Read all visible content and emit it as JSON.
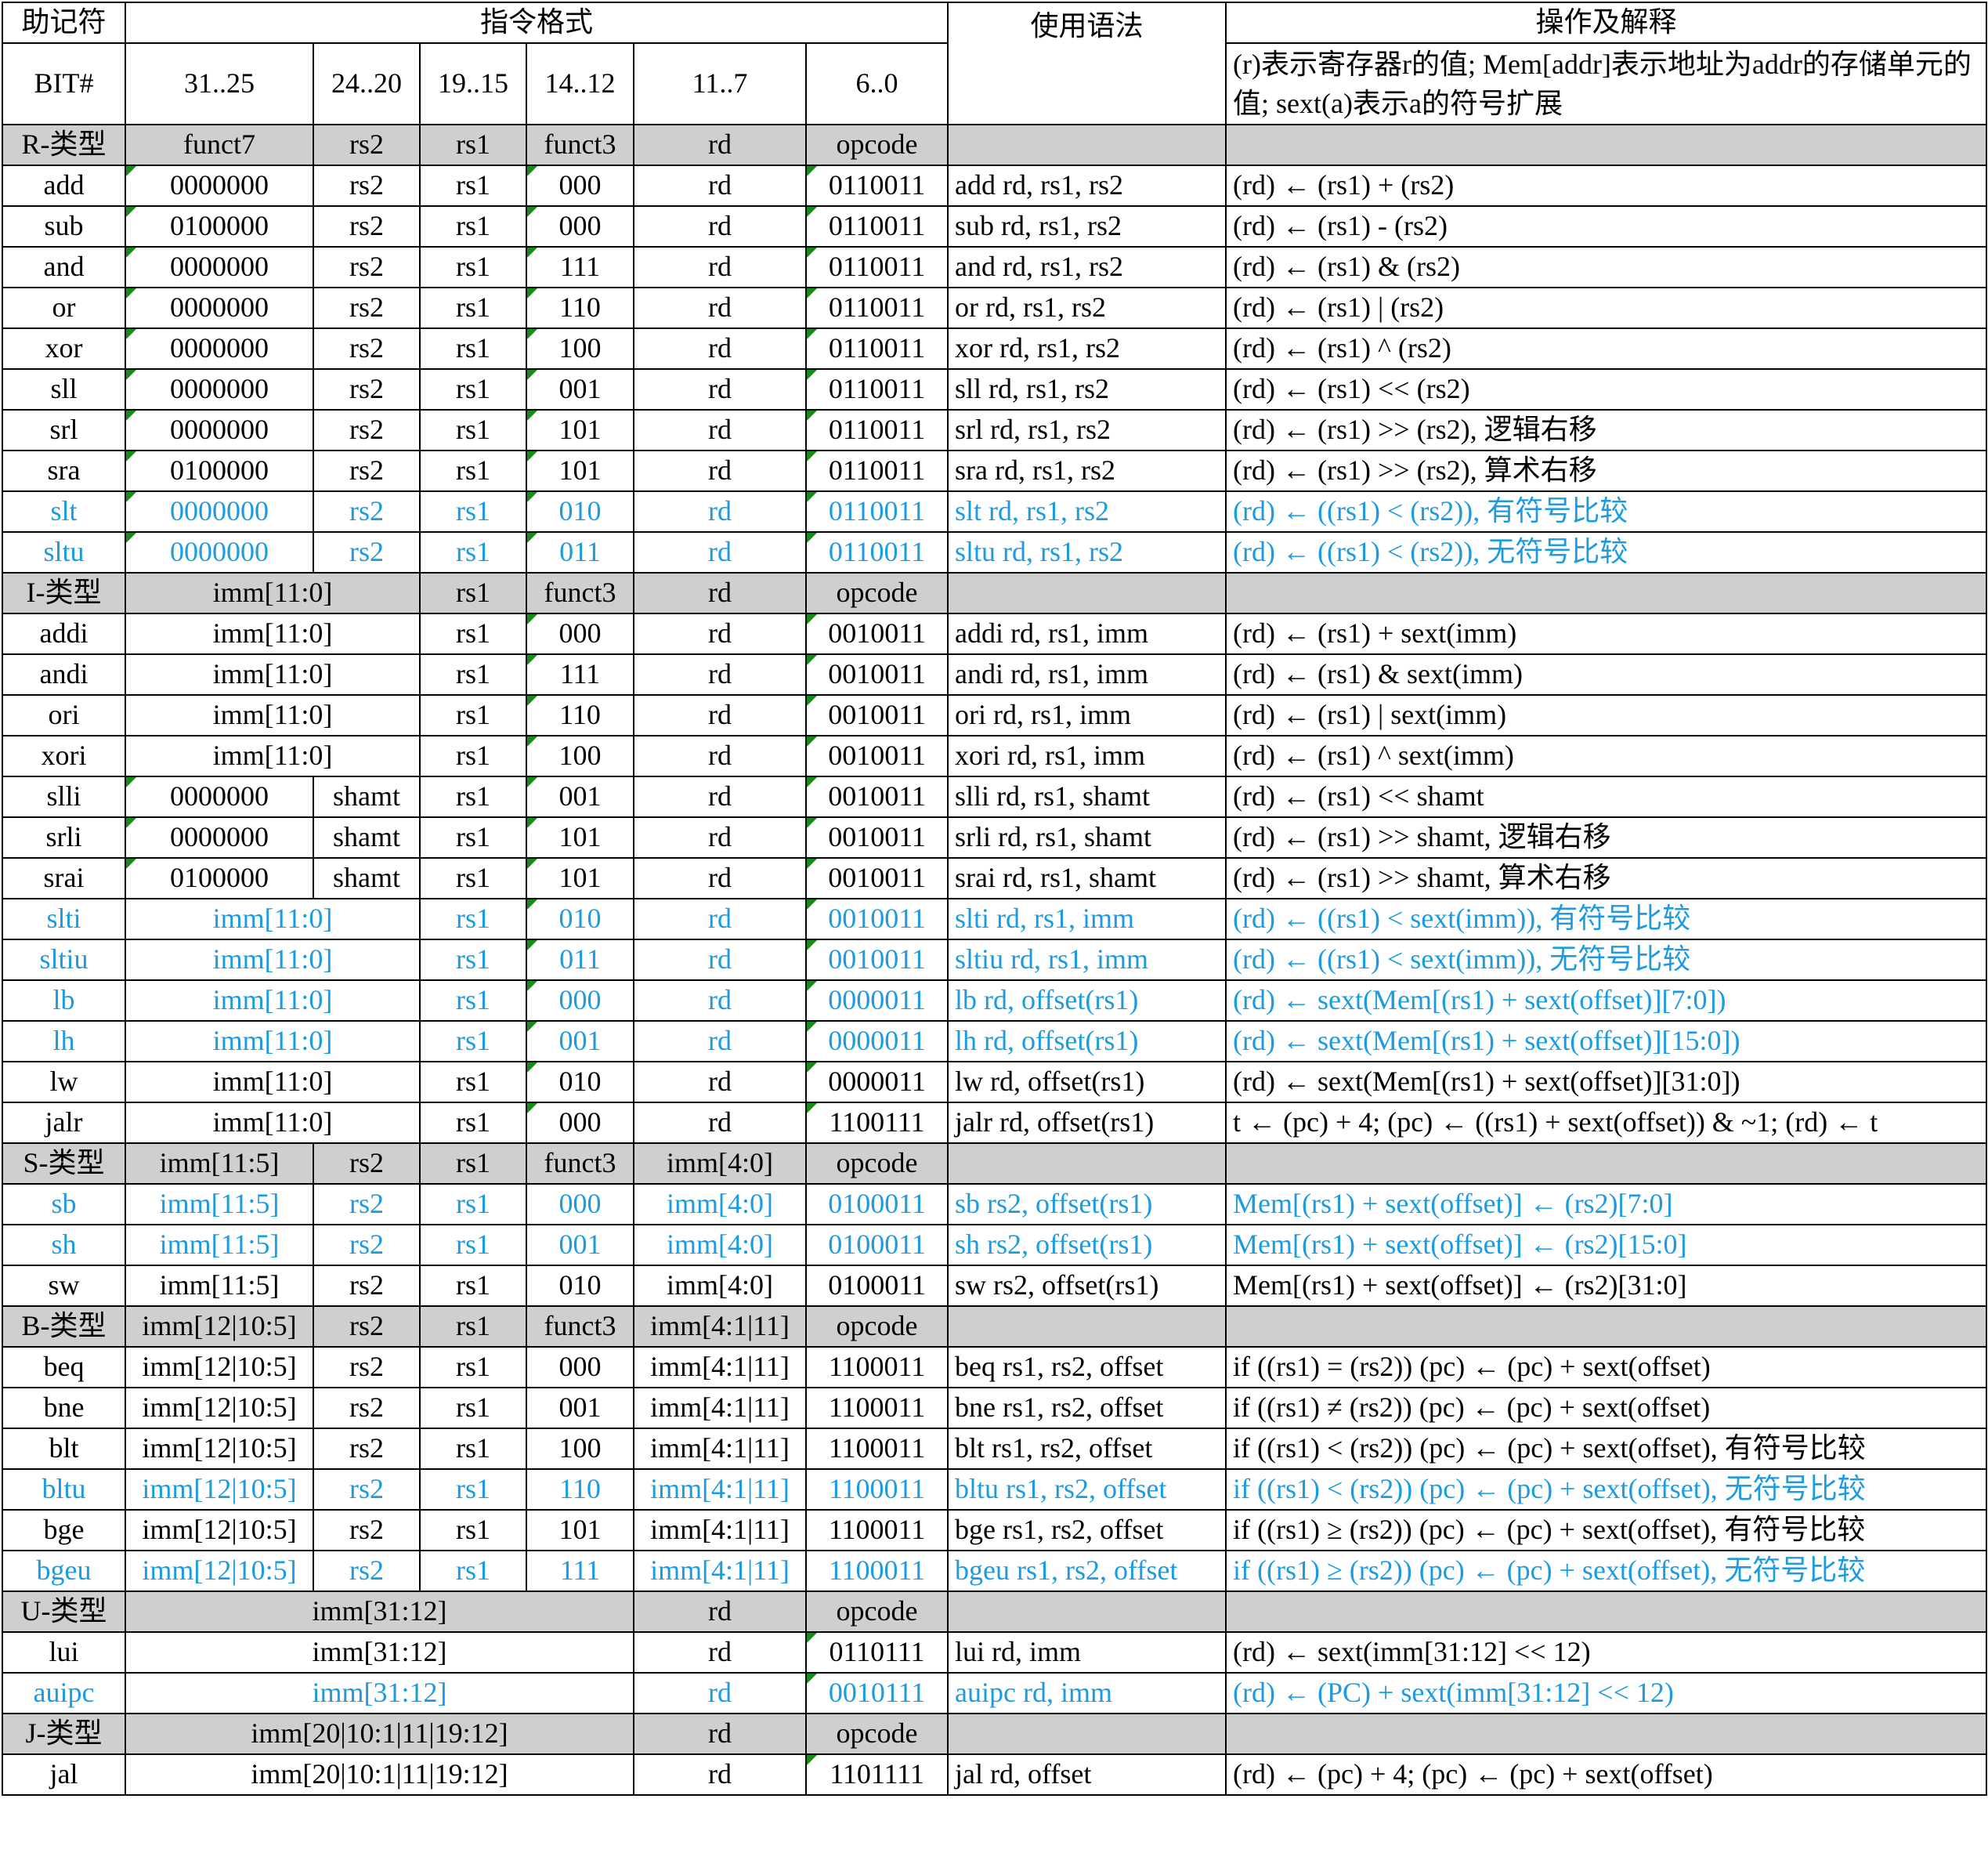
{
  "header": {
    "mnemonic": "助记符",
    "format": "指令格式",
    "syntax": "使用语法",
    "operation": "操作及解释",
    "bit": "BIT#",
    "bits": [
      "31..25",
      "24..20",
      "19..15",
      "14..12",
      "11..7",
      "6..0"
    ],
    "note": "(r)表示寄存器r的值; Mem[addr]表示地址为addr的存储单元的值; sext(a)表示a的符号扩展"
  },
  "colors": {
    "highlight": "#1d9be0",
    "type_row_bg": "#cfcfcf",
    "marker": "#1a8a1a"
  },
  "rows": [
    {
      "kind": "type",
      "c": [
        "R-类型",
        "funct7",
        "rs2",
        "rs1",
        "funct3",
        "rd",
        "opcode",
        "",
        ""
      ]
    },
    {
      "kind": "r",
      "hl": false,
      "c": [
        "add",
        "0000000",
        "rs2",
        "rs1",
        "000",
        "rd",
        "0110011",
        "add rd, rs1, rs2",
        "(rd) ← (rs1) + (rs2)"
      ]
    },
    {
      "kind": "r",
      "hl": false,
      "c": [
        "sub",
        "0100000",
        "rs2",
        "rs1",
        "000",
        "rd",
        "0110011",
        "sub rd, rs1, rs2",
        "(rd) ← (rs1) - (rs2)"
      ]
    },
    {
      "kind": "r",
      "hl": false,
      "c": [
        "and",
        "0000000",
        "rs2",
        "rs1",
        "111",
        "rd",
        "0110011",
        "and rd, rs1, rs2",
        "(rd) ← (rs1) & (rs2)"
      ]
    },
    {
      "kind": "r",
      "hl": false,
      "c": [
        "or",
        "0000000",
        "rs2",
        "rs1",
        "110",
        "rd",
        "0110011",
        "or rd, rs1, rs2",
        "(rd) ← (rs1) | (rs2)"
      ]
    },
    {
      "kind": "r",
      "hl": false,
      "c": [
        "xor",
        "0000000",
        "rs2",
        "rs1",
        "100",
        "rd",
        "0110011",
        "xor rd, rs1, rs2",
        "(rd) ← (rs1) ^ (rs2)"
      ]
    },
    {
      "kind": "r",
      "hl": false,
      "c": [
        "sll",
        "0000000",
        "rs2",
        "rs1",
        "001",
        "rd",
        "0110011",
        "sll rd, rs1, rs2",
        "(rd) ← (rs1) << (rs2)"
      ]
    },
    {
      "kind": "r",
      "hl": false,
      "c": [
        "srl",
        "0000000",
        "rs2",
        "rs1",
        "101",
        "rd",
        "0110011",
        "srl rd, rs1, rs2",
        "(rd) ← (rs1) >> (rs2), 逻辑右移"
      ]
    },
    {
      "kind": "r",
      "hl": false,
      "c": [
        "sra",
        "0100000",
        "rs2",
        "rs1",
        "101",
        "rd",
        "0110011",
        "sra rd, rs1, rs2",
        "(rd) ← (rs1) >> (rs2), 算术右移"
      ]
    },
    {
      "kind": "r",
      "hl": true,
      "c": [
        "slt",
        "0000000",
        "rs2",
        "rs1",
        "010",
        "rd",
        "0110011",
        "slt rd, rs1, rs2",
        "(rd) ← ((rs1) < (rs2)), 有符号比较"
      ]
    },
    {
      "kind": "r",
      "hl": true,
      "c": [
        "sltu",
        "0000000",
        "rs2",
        "rs1",
        "011",
        "rd",
        "0110011",
        "sltu rd, rs1, rs2",
        "(rd) ← ((rs1) < (rs2)), 无符号比较"
      ]
    },
    {
      "kind": "type",
      "c": [
        "I-类型",
        "imm[11:0]",
        "rs1",
        "funct3",
        "rd",
        "opcode",
        "",
        ""
      ]
    },
    {
      "kind": "i",
      "hl": false,
      "c": [
        "addi",
        "imm[11:0]",
        "rs1",
        "000",
        "rd",
        "0010011",
        "addi rd, rs1, imm",
        "(rd) ← (rs1) + sext(imm)"
      ]
    },
    {
      "kind": "i",
      "hl": false,
      "c": [
        "andi",
        "imm[11:0]",
        "rs1",
        "111",
        "rd",
        "0010011",
        "andi rd, rs1, imm",
        "(rd) ← (rs1) & sext(imm)"
      ]
    },
    {
      "kind": "i",
      "hl": false,
      "c": [
        "ori",
        "imm[11:0]",
        "rs1",
        "110",
        "rd",
        "0010011",
        "ori rd, rs1, imm",
        "(rd) ← (rs1) | sext(imm)"
      ]
    },
    {
      "kind": "i",
      "hl": false,
      "c": [
        "xori",
        "imm[11:0]",
        "rs1",
        "100",
        "rd",
        "0010011",
        "xori rd, rs1, imm",
        "(rd) ← (rs1) ^ sext(imm)"
      ]
    },
    {
      "kind": "r",
      "hl": false,
      "c": [
        "slli",
        "0000000",
        "shamt",
        "rs1",
        "001",
        "rd",
        "0010011",
        "slli rd, rs1, shamt",
        "(rd) ← (rs1) << shamt"
      ]
    },
    {
      "kind": "r",
      "hl": false,
      "c": [
        "srli",
        "0000000",
        "shamt",
        "rs1",
        "101",
        "rd",
        "0010011",
        "srli rd, rs1, shamt",
        "(rd) ← (rs1) >> shamt, 逻辑右移"
      ]
    },
    {
      "kind": "r",
      "hl": false,
      "c": [
        "srai",
        "0100000",
        "shamt",
        "rs1",
        "101",
        "rd",
        "0010011",
        "srai rd, rs1, shamt",
        "(rd) ← (rs1) >> shamt, 算术右移"
      ]
    },
    {
      "kind": "i",
      "hl": true,
      "c": [
        "slti",
        "imm[11:0]",
        "rs1",
        "010",
        "rd",
        "0010011",
        "slti rd, rs1, imm",
        "(rd) ← ((rs1) < sext(imm)), 有符号比较"
      ]
    },
    {
      "kind": "i",
      "hl": true,
      "c": [
        "sltiu",
        "imm[11:0]",
        "rs1",
        "011",
        "rd",
        "0010011",
        "sltiu rd, rs1, imm",
        "(rd) ← ((rs1) < sext(imm)), 无符号比较"
      ]
    },
    {
      "kind": "i",
      "hl": true,
      "c": [
        "lb",
        "imm[11:0]",
        "rs1",
        "000",
        "rd",
        "0000011",
        "lb rd, offset(rs1)",
        "(rd) ← sext(Mem[(rs1) + sext(offset)][7:0])"
      ]
    },
    {
      "kind": "i",
      "hl": true,
      "c": [
        "lh",
        "imm[11:0]",
        "rs1",
        "001",
        "rd",
        "0000011",
        "lh rd, offset(rs1)",
        "(rd) ← sext(Mem[(rs1) + sext(offset)][15:0])"
      ]
    },
    {
      "kind": "i",
      "hl": false,
      "c": [
        "lw",
        "imm[11:0]",
        "rs1",
        "010",
        "rd",
        "0000011",
        "lw rd, offset(rs1)",
        "(rd) ← sext(Mem[(rs1) + sext(offset)][31:0])"
      ]
    },
    {
      "kind": "i",
      "hl": false,
      "c": [
        "jalr",
        "imm[11:0]",
        "rs1",
        "000",
        "rd",
        "1100111",
        "jalr rd, offset(rs1)",
        "t ← (pc) + 4; (pc) ← ((rs1) + sext(offset)) & ~1; (rd) ← t"
      ]
    },
    {
      "kind": "type",
      "c": [
        "S-类型",
        "imm[11:5]",
        "rs2",
        "rs1",
        "funct3",
        "imm[4:0]",
        "opcode",
        "",
        ""
      ]
    },
    {
      "kind": "s",
      "hl": true,
      "c": [
        "sb",
        "imm[11:5]",
        "rs2",
        "rs1",
        "000",
        "imm[4:0]",
        "0100011",
        "sb rs2, offset(rs1)",
        "Mem[(rs1) + sext(offset)] ← (rs2)[7:0]"
      ]
    },
    {
      "kind": "s",
      "hl": true,
      "c": [
        "sh",
        "imm[11:5]",
        "rs2",
        "rs1",
        "001",
        "imm[4:0]",
        "0100011",
        "sh rs2, offset(rs1)",
        "Mem[(rs1) + sext(offset)] ← (rs2)[15:0]"
      ]
    },
    {
      "kind": "s",
      "hl": false,
      "c": [
        "sw",
        "imm[11:5]",
        "rs2",
        "rs1",
        "010",
        "imm[4:0]",
        "0100011",
        "sw rs2, offset(rs1)",
        "Mem[(rs1) + sext(offset)] ← (rs2)[31:0]"
      ]
    },
    {
      "kind": "type",
      "c": [
        "B-类型",
        "imm[12|10:5]",
        "rs2",
        "rs1",
        "funct3",
        "imm[4:1|11]",
        "opcode",
        "",
        ""
      ]
    },
    {
      "kind": "s",
      "hl": false,
      "c": [
        "beq",
        "imm[12|10:5]",
        "rs2",
        "rs1",
        "000",
        "imm[4:1|11]",
        "1100011",
        "beq rs1, rs2, offset",
        "if ((rs1) = (rs2)) (pc) ← (pc) + sext(offset)"
      ]
    },
    {
      "kind": "s",
      "hl": false,
      "c": [
        "bne",
        "imm[12|10:5]",
        "rs2",
        "rs1",
        "001",
        "imm[4:1|11]",
        "1100011",
        "bne rs1, rs2, offset",
        "if ((rs1) ≠ (rs2)) (pc) ← (pc) + sext(offset)"
      ]
    },
    {
      "kind": "s",
      "hl": false,
      "c": [
        "blt",
        "imm[12|10:5]",
        "rs2",
        "rs1",
        "100",
        "imm[4:1|11]",
        "1100011",
        "blt rs1, rs2, offset",
        "if ((rs1) < (rs2)) (pc) ← (pc) + sext(offset), 有符号比较"
      ]
    },
    {
      "kind": "s",
      "hl": true,
      "c": [
        "bltu",
        "imm[12|10:5]",
        "rs2",
        "rs1",
        "110",
        "imm[4:1|11]",
        "1100011",
        "bltu rs1, rs2, offset",
        "if ((rs1) < (rs2)) (pc) ← (pc) + sext(offset), 无符号比较"
      ]
    },
    {
      "kind": "s",
      "hl": false,
      "c": [
        "bge",
        "imm[12|10:5]",
        "rs2",
        "rs1",
        "101",
        "imm[4:1|11]",
        "1100011",
        "bge rs1, rs2, offset",
        "if ((rs1) ≥ (rs2)) (pc) ← (pc) + sext(offset), 有符号比较"
      ]
    },
    {
      "kind": "s",
      "hl": true,
      "c": [
        "bgeu",
        "imm[12|10:5]",
        "rs2",
        "rs1",
        "111",
        "imm[4:1|11]",
        "1100011",
        "bgeu rs1, rs2, offset",
        "if ((rs1) ≥ (rs2)) (pc) ← (pc) + sext(offset), 无符号比较"
      ]
    },
    {
      "kind": "type",
      "c": [
        "U-类型",
        "imm[31:12]",
        "rd",
        "opcode",
        "",
        ""
      ]
    },
    {
      "kind": "u",
      "hl": false,
      "c": [
        "lui",
        "imm[31:12]",
        "rd",
        "0110111",
        "lui rd, imm",
        "(rd) ← sext(imm[31:12] << 12)"
      ]
    },
    {
      "kind": "u",
      "hl": true,
      "c": [
        "auipc",
        "imm[31:12]",
        "rd",
        "0010111",
        "auipc rd, imm",
        "(rd) ← (PC) + sext(imm[31:12] << 12)"
      ]
    },
    {
      "kind": "type",
      "c": [
        "J-类型",
        "imm[20|10:1|11|19:12]",
        "rd",
        "opcode",
        "",
        ""
      ]
    },
    {
      "kind": "u",
      "hl": false,
      "c": [
        "jal",
        "imm[20|10:1|11|19:12]",
        "rd",
        "1101111",
        "jal rd, offset",
        "(rd) ← (pc) + 4; (pc) ← (pc) + sext(offset)"
      ]
    }
  ]
}
